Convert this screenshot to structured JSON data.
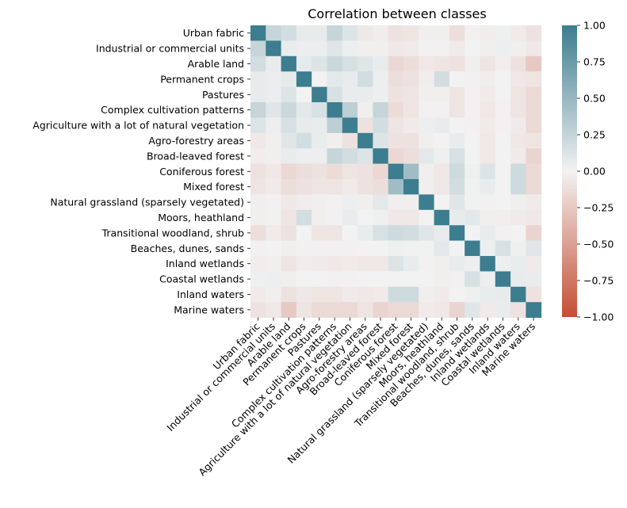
{
  "chart_data": {
    "type": "heatmap",
    "title": "Correlation between classes",
    "xlabel": "",
    "ylabel": "",
    "labels": [
      "Urban fabric",
      "Industrial or commercial units",
      "Arable land",
      "Permanent crops",
      "Pastures",
      "Complex cultivation patterns",
      "Agriculture with a lot of natural vegetation",
      "Agro-forestry areas",
      "Broad-leaved forest",
      "Coniferous forest",
      "Mixed forest",
      "Natural grassland (sparsely vegetated)",
      "Moors, heathland",
      "Transitional woodland, shrub",
      "Beaches, dunes, sands",
      "Inland wetlands",
      "Coastal wetlands",
      "Inland waters",
      "Marine waters"
    ],
    "matrix": [
      [
        1.0,
        0.25,
        0.18,
        0.06,
        0.06,
        0.25,
        0.12,
        -0.06,
        -0.03,
        -0.1,
        -0.08,
        -0.02,
        -0.02,
        -0.12,
        -0.01,
        -0.03,
        0.02,
        -0.05,
        -0.1
      ],
      [
        0.25,
        1.0,
        0.05,
        0.04,
        0.04,
        0.1,
        0.03,
        -0.02,
        -0.02,
        -0.06,
        -0.05,
        -0.01,
        -0.01,
        -0.05,
        0.0,
        -0.02,
        0.03,
        -0.02,
        -0.06
      ],
      [
        0.18,
        0.05,
        1.0,
        0.07,
        0.12,
        0.22,
        0.15,
        0.1,
        0.05,
        -0.16,
        -0.12,
        -0.06,
        -0.08,
        -0.1,
        -0.02,
        -0.08,
        -0.02,
        -0.1,
        -0.25
      ],
      [
        0.06,
        0.04,
        0.07,
        1.0,
        0.0,
        0.08,
        0.06,
        0.18,
        0.03,
        -0.12,
        -0.1,
        -0.03,
        0.18,
        0.0,
        -0.01,
        -0.03,
        0.0,
        -0.06,
        -0.08
      ],
      [
        0.06,
        0.04,
        0.12,
        0.0,
        1.0,
        0.15,
        0.05,
        0.05,
        0.03,
        -0.1,
        -0.08,
        -0.02,
        -0.02,
        -0.08,
        -0.01,
        -0.04,
        0.0,
        -0.08,
        -0.15
      ],
      [
        0.25,
        0.1,
        0.22,
        0.08,
        0.15,
        1.0,
        0.3,
        -0.02,
        0.25,
        -0.14,
        -0.08,
        -0.01,
        -0.01,
        -0.08,
        -0.01,
        -0.06,
        -0.01,
        -0.08,
        -0.15
      ],
      [
        0.12,
        0.03,
        0.15,
        0.06,
        0.05,
        0.3,
        1.0,
        -0.1,
        0.18,
        -0.08,
        -0.05,
        0.03,
        0.05,
        0.0,
        -0.01,
        -0.05,
        -0.01,
        -0.04,
        -0.15
      ],
      [
        -0.06,
        -0.02,
        0.1,
        0.18,
        0.05,
        -0.02,
        -0.1,
        1.0,
        0.12,
        -0.1,
        -0.1,
        -0.02,
        0.0,
        0.05,
        0.0,
        -0.06,
        0.0,
        -0.06,
        -0.08
      ],
      [
        -0.03,
        -0.02,
        0.05,
        0.03,
        0.03,
        0.25,
        0.18,
        0.12,
        1.0,
        -0.16,
        -0.12,
        0.08,
        0.02,
        0.15,
        0.0,
        -0.06,
        0.0,
        -0.05,
        -0.18
      ],
      [
        -0.1,
        -0.06,
        -0.16,
        -0.12,
        -0.1,
        -0.14,
        -0.08,
        -0.1,
        -0.16,
        1.0,
        0.45,
        -0.02,
        -0.06,
        0.2,
        0.02,
        0.12,
        0.0,
        0.2,
        -0.15
      ],
      [
        -0.08,
        -0.05,
        -0.12,
        -0.1,
        -0.08,
        -0.08,
        -0.05,
        -0.1,
        -0.12,
        0.45,
        1.0,
        -0.02,
        -0.06,
        0.18,
        0.01,
        0.05,
        0.0,
        0.2,
        -0.15
      ],
      [
        -0.02,
        -0.01,
        -0.06,
        -0.03,
        -0.02,
        -0.01,
        0.03,
        -0.02,
        0.08,
        -0.02,
        -0.02,
        1.0,
        0.0,
        0.1,
        0.01,
        -0.01,
        0.0,
        -0.02,
        -0.04
      ],
      [
        -0.02,
        -0.01,
        -0.08,
        0.18,
        -0.02,
        -0.01,
        0.05,
        0.0,
        0.02,
        -0.06,
        -0.06,
        0.0,
        1.0,
        0.06,
        0.08,
        -0.02,
        -0.02,
        -0.04,
        -0.06
      ],
      [
        -0.12,
        -0.05,
        -0.1,
        0.0,
        -0.08,
        -0.08,
        0.0,
        0.05,
        0.15,
        0.2,
        0.18,
        0.1,
        0.06,
        1.0,
        0.0,
        0.05,
        -0.01,
        0.0,
        -0.18
      ],
      [
        -0.01,
        0.0,
        -0.02,
        -0.01,
        -0.01,
        -0.01,
        -0.01,
        0.0,
        0.0,
        0.02,
        0.01,
        0.01,
        0.08,
        0.0,
        1.0,
        0.03,
        0.15,
        0.02,
        0.1
      ],
      [
        -0.03,
        -0.02,
        -0.08,
        -0.03,
        -0.04,
        -0.06,
        -0.05,
        -0.06,
        -0.06,
        0.12,
        0.05,
        -0.01,
        -0.02,
        0.05,
        0.03,
        1.0,
        0.03,
        0.05,
        -0.05
      ],
      [
        0.02,
        0.03,
        -0.02,
        0.0,
        0.0,
        -0.01,
        -0.01,
        0.0,
        0.0,
        0.0,
        0.0,
        0.0,
        -0.02,
        -0.01,
        0.15,
        0.03,
        1.0,
        0.06,
        0.05
      ],
      [
        -0.05,
        -0.02,
        -0.1,
        -0.06,
        -0.08,
        -0.08,
        -0.04,
        -0.06,
        -0.05,
        0.2,
        0.2,
        -0.02,
        -0.04,
        0.0,
        0.02,
        0.05,
        0.06,
        1.0,
        -0.1
      ],
      [
        -0.1,
        -0.06,
        -0.25,
        -0.08,
        -0.15,
        -0.15,
        -0.15,
        -0.08,
        -0.18,
        -0.15,
        -0.15,
        -0.04,
        -0.06,
        -0.18,
        0.1,
        -0.05,
        0.05,
        -0.1,
        1.0
      ]
    ],
    "colorbar": {
      "range": [
        -1.0,
        1.0
      ],
      "ticks": [
        "1.00",
        "0.75",
        "0.50",
        "0.25",
        "0.00",
        "−0.25",
        "−0.50",
        "−0.75",
        "−1.00"
      ],
      "tick_values": [
        1.0,
        0.75,
        0.5,
        0.25,
        0.0,
        -0.25,
        -0.5,
        -0.75,
        -1.0
      ]
    },
    "colors": {
      "negative": "#c44e34",
      "center": "#f2f2f2",
      "positive": "#3c7d8f"
    }
  }
}
